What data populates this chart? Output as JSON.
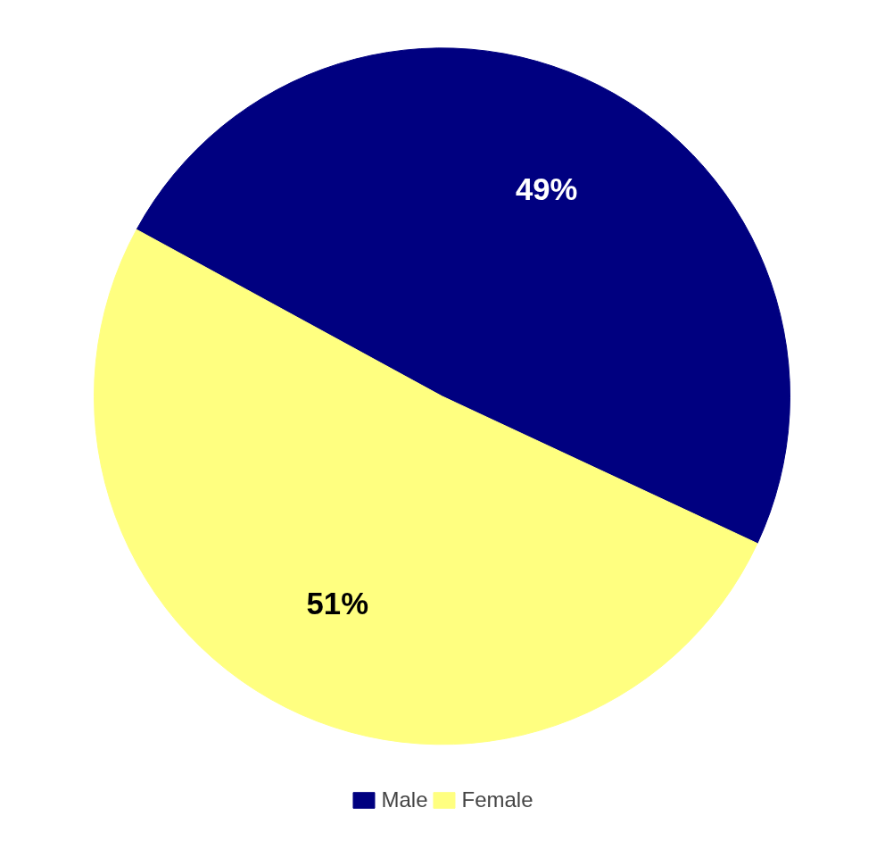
{
  "chart_data": {
    "type": "pie",
    "categories": [
      "Male",
      "Female"
    ],
    "values": [
      49,
      51
    ],
    "colors": [
      "#000080",
      "#ffff80"
    ],
    "value_labels": [
      "49%",
      "51%"
    ],
    "legend": "bottom"
  }
}
